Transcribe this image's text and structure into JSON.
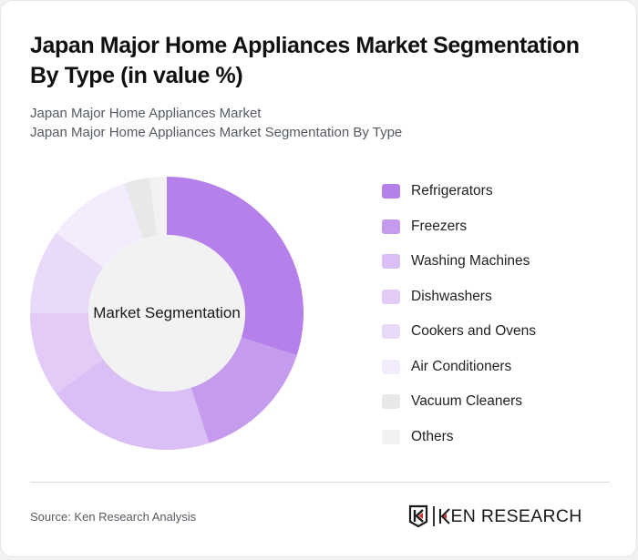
{
  "header": {
    "title": "Japan Major Home Appliances Market Segmentation By Type (in value %)",
    "subtitle_line1": "Japan Major Home Appliances Market",
    "subtitle_line2": "Japan Major Home Appliances Market Segmentation By Type"
  },
  "chart": {
    "center_label": "Market Segmentation"
  },
  "legend": [
    {
      "label": "Refrigerators",
      "color": "#b580ea"
    },
    {
      "label": "Freezers",
      "color": "#c59bed"
    },
    {
      "label": "Washing Machines",
      "color": "#d9bff5"
    },
    {
      "label": "Dishwashers",
      "color": "#e2cbf6"
    },
    {
      "label": "Cookers and Ovens",
      "color": "#e9dbf8"
    },
    {
      "label": "Air Conditioners",
      "color": "#f3ecfc"
    },
    {
      "label": "Vacuum Cleaners",
      "color": "#e8e8e8"
    },
    {
      "label": "Others",
      "color": "#f2f2f2"
    }
  ],
  "footer": {
    "source": "Source: Ken Research Analysis",
    "logo_text": "KEN RESEARCH"
  },
  "chart_data": {
    "type": "pie",
    "title": "Japan Major Home Appliances Market Segmentation By Type (in value %)",
    "subtitle": "Japan Major Home Appliances Market Segmentation By Type",
    "center_label": "Market Segmentation",
    "donut": true,
    "categories": [
      "Refrigerators",
      "Freezers",
      "Washing Machines",
      "Dishwashers",
      "Cookers and Ovens",
      "Air Conditioners",
      "Vacuum Cleaners",
      "Others"
    ],
    "values": [
      30,
      15,
      20,
      10,
      10,
      10,
      3,
      2
    ],
    "colors": [
      "#b580ea",
      "#c59bed",
      "#d9bff5",
      "#e2cbf6",
      "#e9dbf8",
      "#f3ecfc",
      "#e8e8e8",
      "#f2f2f2"
    ],
    "legend_position": "right",
    "unit": "%"
  }
}
